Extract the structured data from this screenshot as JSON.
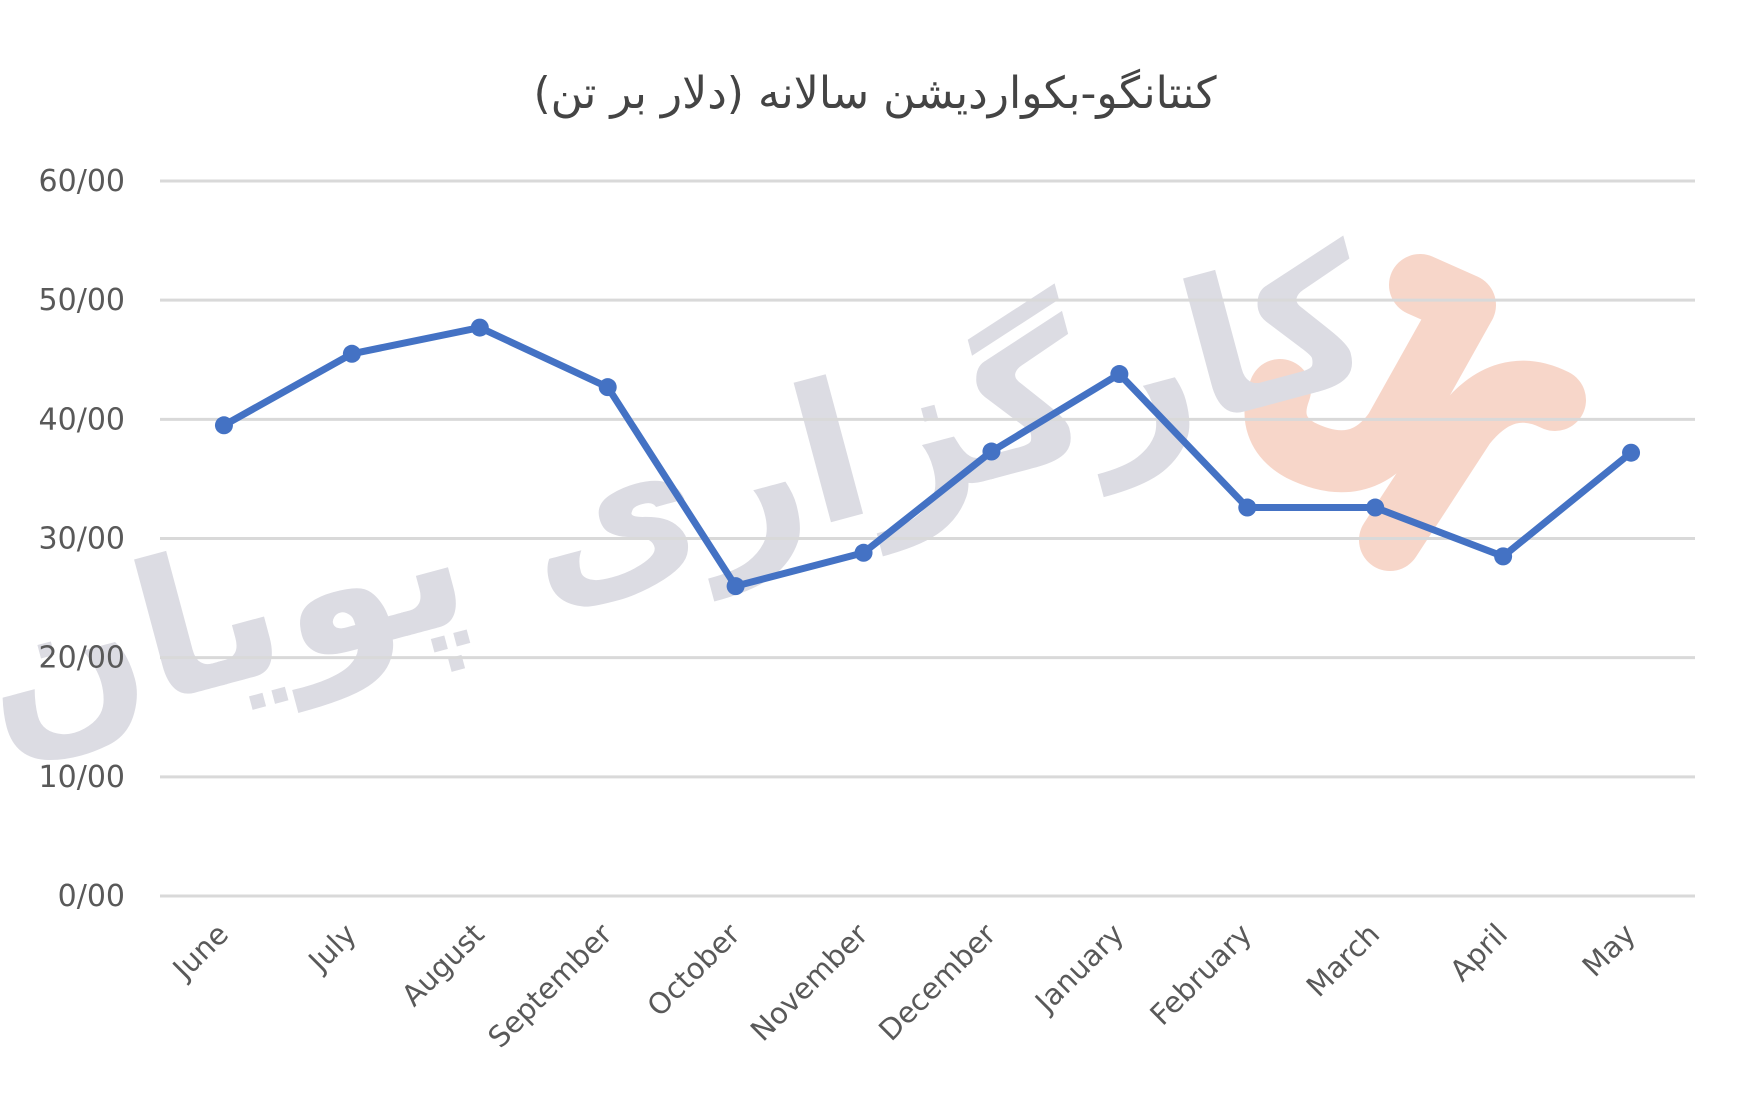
{
  "chart_data": {
    "type": "line",
    "title": "کنتانگو-بکواردیشن سالانه (دلار بر تن)",
    "categories": [
      "June",
      "July",
      "August",
      "September",
      "October",
      "November",
      "December",
      "January",
      "February",
      "March",
      "April",
      "May"
    ],
    "series": [
      {
        "values": [
          39.5,
          45.5,
          47.7,
          42.7,
          26.0,
          28.8,
          37.3,
          43.8,
          32.6,
          32.6,
          28.5,
          37.2
        ],
        "color": "#4472c4"
      }
    ],
    "y_tick_labels": [
      "0/00",
      "10/00",
      "20/00",
      "30/00",
      "40/00",
      "50/00",
      "60/00"
    ],
    "ylim": [
      0,
      60
    ],
    "grid": true,
    "legend": "none"
  },
  "watermark": {
    "text": "کارگزاری پویان",
    "logo_color": "#f6cfc0",
    "text_color": "#dcdce3"
  }
}
